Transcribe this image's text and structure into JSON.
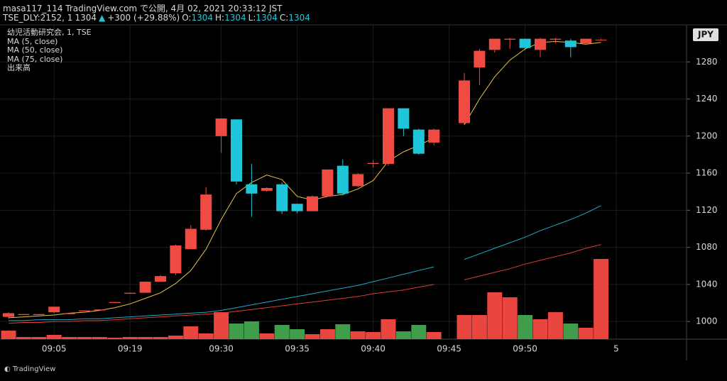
{
  "header": {
    "line1": "masa117_114 TradingView.com で公開, 4月 02, 2021 20:33:12 JST",
    "symbol": "TSE_DLY:2152, 1",
    "last": "1304",
    "change": "+300 (+29.88%)",
    "ohlc": [
      {
        "label": "O:",
        "value": "1304"
      },
      {
        "label": "H:",
        "value": "1304"
      },
      {
        "label": "L:",
        "value": "1304"
      },
      {
        "label": "C:",
        "value": "1304"
      }
    ]
  },
  "legend": [
    "幼児活動研究会, 1, TSE",
    "MA (5, close)",
    "MA (50, close)",
    "MA (75, close)",
    "出来高"
  ],
  "currency": "JPY",
  "footer": "TradingView",
  "chart_data": {
    "type": "candlestick",
    "categories": [
      null,
      null,
      null,
      "09:05",
      null,
      null,
      null,
      null,
      "09:19",
      null,
      null,
      null,
      null,
      null,
      "09:30",
      null,
      null,
      null,
      null,
      "09:35",
      null,
      null,
      null,
      null,
      "09:40",
      null,
      null,
      null,
      null,
      "09:45",
      null,
      null,
      null,
      null,
      "09:50",
      null,
      null,
      null,
      null,
      null,
      "5"
    ],
    "open": [
      1005,
      1007,
      1007,
      1010,
      1008,
      1011,
      1012,
      1020,
      1030,
      1031,
      1043,
      1052,
      1078,
      1099,
      1200,
      1218,
      1148,
      1141,
      1148,
      1127,
      1119,
      1135,
      1168,
      1146,
      1170,
      1170,
      1230,
      1207,
      1193,
      null,
      1214,
      1274,
      1293,
      1304,
      1305,
      1293,
      1304,
      1303,
      1300,
      1304,
      null
    ],
    "high": [
      1010,
      1008,
      1008,
      1016,
      1009,
      1012,
      1013,
      1021,
      1031,
      1043,
      1050,
      1083,
      1104,
      1145,
      1219,
      1218,
      1170,
      1145,
      1150,
      1127,
      1136,
      1164,
      1175,
      1160,
      1174,
      1230,
      1230,
      1208,
      1208,
      null,
      1268,
      1294,
      1305,
      1306,
      1305,
      1306,
      1306,
      1305,
      1305,
      1305,
      null
    ],
    "low": [
      1003,
      1007,
      1007,
      1009,
      1008,
      1011,
      1012,
      1020,
      1030,
      1031,
      1043,
      1050,
      1078,
      1098,
      1182,
      1148,
      1113,
      1140,
      1116,
      1117,
      1119,
      1135,
      1136,
      1145,
      1166,
      1168,
      1200,
      1180,
      1190,
      null,
      1212,
      1255,
      1290,
      1294,
      1293,
      1285,
      1300,
      1285,
      1299,
      1303,
      null
    ],
    "close": [
      1009,
      1008,
      1008,
      1016,
      1009,
      1012,
      1013,
      1021,
      1031,
      1043,
      1049,
      1082,
      1100,
      1137,
      1219,
      1151,
      1138,
      1144,
      1119,
      1119,
      1135,
      1164,
      1138,
      1159,
      1171,
      1230,
      1208,
      1181,
      1207,
      null,
      1260,
      1292,
      1305,
      1305,
      1295,
      1305,
      1305,
      1296,
      1305,
      1304,
      null
    ],
    "up_color": "#ef4b43",
    "down_color": "#1fc6da",
    "volume": [
      12,
      3,
      3,
      6,
      3,
      3,
      3,
      2,
      3,
      3,
      3,
      5,
      18,
      8,
      38,
      22,
      25,
      8,
      20,
      14,
      7,
      14,
      21,
      11,
      10,
      28,
      11,
      20,
      10,
      null,
      34,
      34,
      66,
      59,
      34,
      28,
      38,
      22,
      16,
      113,
      null
    ],
    "volume_up_color": "#e8463f",
    "volume_down_color": "#3f9d4c",
    "series": [
      {
        "name": "MA (5, close)",
        "color": "#e8c24a",
        "values": [
          1004,
          1005,
          1006,
          1007,
          1009,
          1010,
          1012,
          1015,
          1019,
          1025,
          1031,
          1041,
          1055,
          1078,
          1110,
          1138,
          1150,
          1158,
          1153,
          1135,
          1131,
          1135,
          1137,
          1143,
          1152,
          1173,
          1183,
          1190,
          1198,
          null,
          1212,
          1240,
          1264,
          1282,
          1294,
          1301,
          1302,
          1301,
          1299,
          1301,
          null
        ]
      },
      {
        "name": "MA (50, close)",
        "color": "#1fa9c9",
        "values": [
          1001,
          1001,
          1002,
          1002,
          1002,
          1003,
          1003,
          1004,
          1005,
          1006,
          1007,
          1008,
          1009,
          1010,
          1012,
          1015,
          1018,
          1021,
          1024,
          1027,
          1030,
          1033,
          1036,
          1039,
          1043,
          1047,
          1051,
          1055,
          1059,
          null,
          1067,
          1073,
          1079,
          1085,
          1091,
          1098,
          1104,
          1110,
          1117,
          1125,
          null
        ]
      },
      {
        "name": "MA (75, close)",
        "color": "#e03c35",
        "values": [
          998,
          999,
          999,
          1000,
          1000,
          1001,
          1001,
          1002,
          1003,
          1004,
          1005,
          1006,
          1007,
          1008,
          1009,
          1011,
          1013,
          1015,
          1017,
          1019,
          1021,
          1023,
          1025,
          1027,
          1030,
          1032,
          1034,
          1037,
          1040,
          null,
          1045,
          1049,
          1053,
          1057,
          1062,
          1066,
          1070,
          1074,
          1079,
          1083,
          null
        ]
      }
    ],
    "ylim": [
      981,
      1320
    ],
    "yticks": [
      1000,
      1040,
      1080,
      1120,
      1160,
      1200,
      1240,
      1280
    ],
    "grid": true
  }
}
